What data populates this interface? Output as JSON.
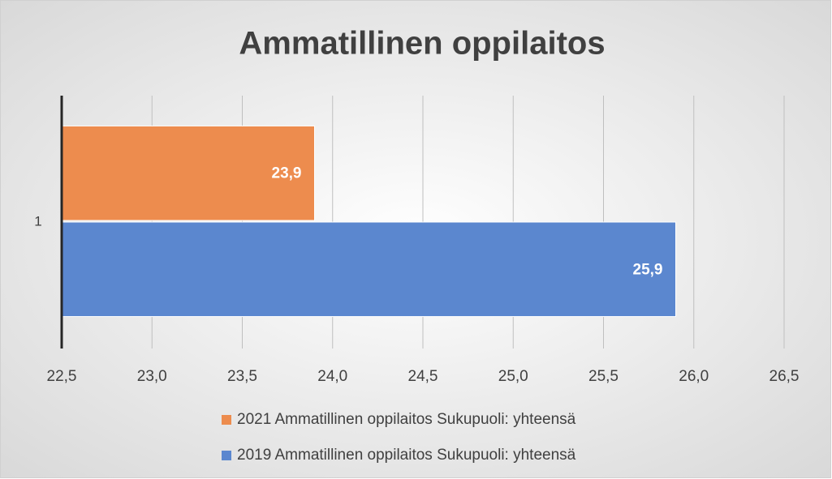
{
  "chart_data": {
    "type": "bar",
    "orientation": "horizontal",
    "title": "Ammatillinen oppilaitos",
    "categories": [
      "1"
    ],
    "series": [
      {
        "name": "2021 Ammatillinen oppilaitos Sukupuoli: yhteensä",
        "color": "#ed8c4e",
        "values": [
          23.9
        ],
        "value_labels": [
          "23,9"
        ]
      },
      {
        "name": "2019 Ammatillinen oppilaitos Sukupuoli: yhteensä",
        "color": "#5b87cf",
        "values": [
          25.9
        ],
        "value_labels": [
          "25,9"
        ]
      }
    ],
    "xlim": [
      22.5,
      26.5
    ],
    "xticks": [
      {
        "value": 22.5,
        "label": "22,5"
      },
      {
        "value": 23.0,
        "label": "23,0"
      },
      {
        "value": 23.5,
        "label": "23,5"
      },
      {
        "value": 24.0,
        "label": "24,0"
      },
      {
        "value": 24.5,
        "label": "24,5"
      },
      {
        "value": 25.0,
        "label": "25,0"
      },
      {
        "value": 25.5,
        "label": "25,5"
      },
      {
        "value": 26.0,
        "label": "26,0"
      },
      {
        "value": 26.5,
        "label": "26,5"
      }
    ],
    "grid": true,
    "legend": "bottom"
  }
}
